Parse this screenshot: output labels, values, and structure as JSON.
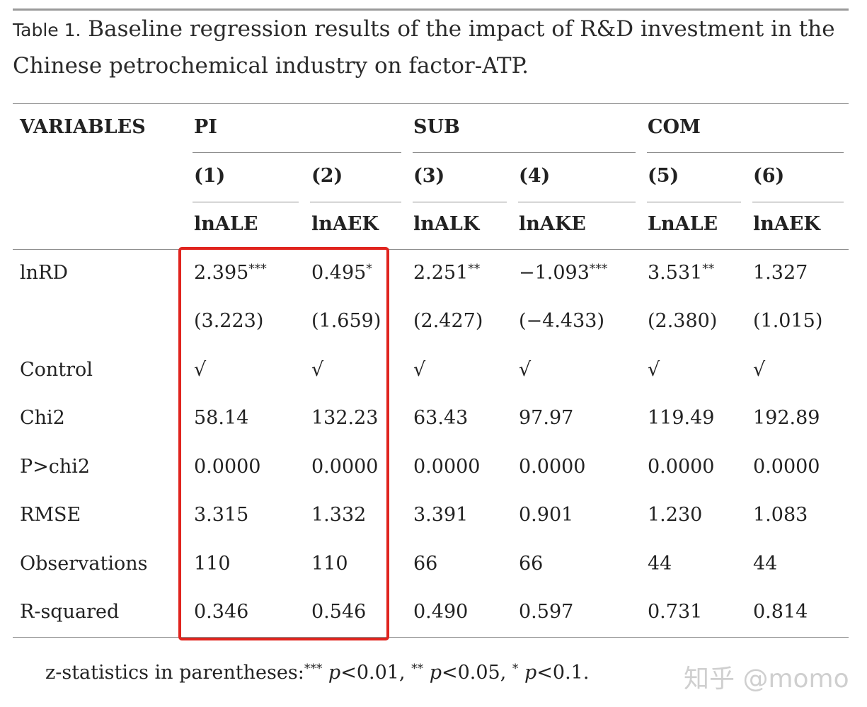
{
  "caption": {
    "label": "Table 1.",
    "text": " Baseline regression results of the impact of R&D investment in the Chinese petrochemical industry on factor-ATP."
  },
  "header": {
    "variables": "VARIABLES",
    "groups": [
      "PI",
      "SUB",
      "COM"
    ],
    "model_numbers": [
      "(1)",
      "(2)",
      "(3)",
      "(4)",
      "(5)",
      "(6)"
    ],
    "dependent_vars": [
      "lnALE",
      "lnAEK",
      "lnALK",
      "lnAKE",
      "LnALE",
      "lnAEK"
    ]
  },
  "rows": {
    "lnrd": {
      "label": "lnRD",
      "coefs": [
        "2.395",
        "0.495",
        "2.251",
        "−1.093",
        "3.531",
        "1.327"
      ],
      "stars": [
        "***",
        "*",
        "**",
        "***",
        "**",
        ""
      ],
      "zstats": [
        "(3.223)",
        "(1.659)",
        "(2.427)",
        "(−4.433)",
        "(2.380)",
        "(1.015)"
      ]
    },
    "control": {
      "label": "Control",
      "values": [
        "√",
        "√",
        "√",
        "√",
        "√",
        "√"
      ]
    },
    "chi2": {
      "label": "Chi2",
      "values": [
        "58.14",
        "132.23",
        "63.43",
        "97.97",
        "119.49",
        "192.89"
      ]
    },
    "p_chi2": {
      "label": "P>chi2",
      "values": [
        "0.0000",
        "0.0000",
        "0.0000",
        "0.0000",
        "0.0000",
        "0.0000"
      ]
    },
    "rmse": {
      "label": "RMSE",
      "values": [
        "3.315",
        "1.332",
        "3.391",
        "0.901",
        "1.230",
        "1.083"
      ]
    },
    "observations": {
      "label": "Observations",
      "values": [
        "110",
        "110",
        "66",
        "66",
        "44",
        "44"
      ]
    },
    "r_squared": {
      "label": "R-squared",
      "values": [
        "0.346",
        "0.546",
        "0.490",
        "0.597",
        "0.731",
        "0.814"
      ]
    }
  },
  "footnote": {
    "prefix": "z-statistics in parentheses:",
    "s3": "***",
    "p1": "p",
    "t1": "<0.01, ",
    "s2": "**",
    "p2": "p",
    "t2": "<0.05, ",
    "s1": "*",
    "p3": "p",
    "t3": "<0.1."
  },
  "watermark": "知乎 @momo"
}
